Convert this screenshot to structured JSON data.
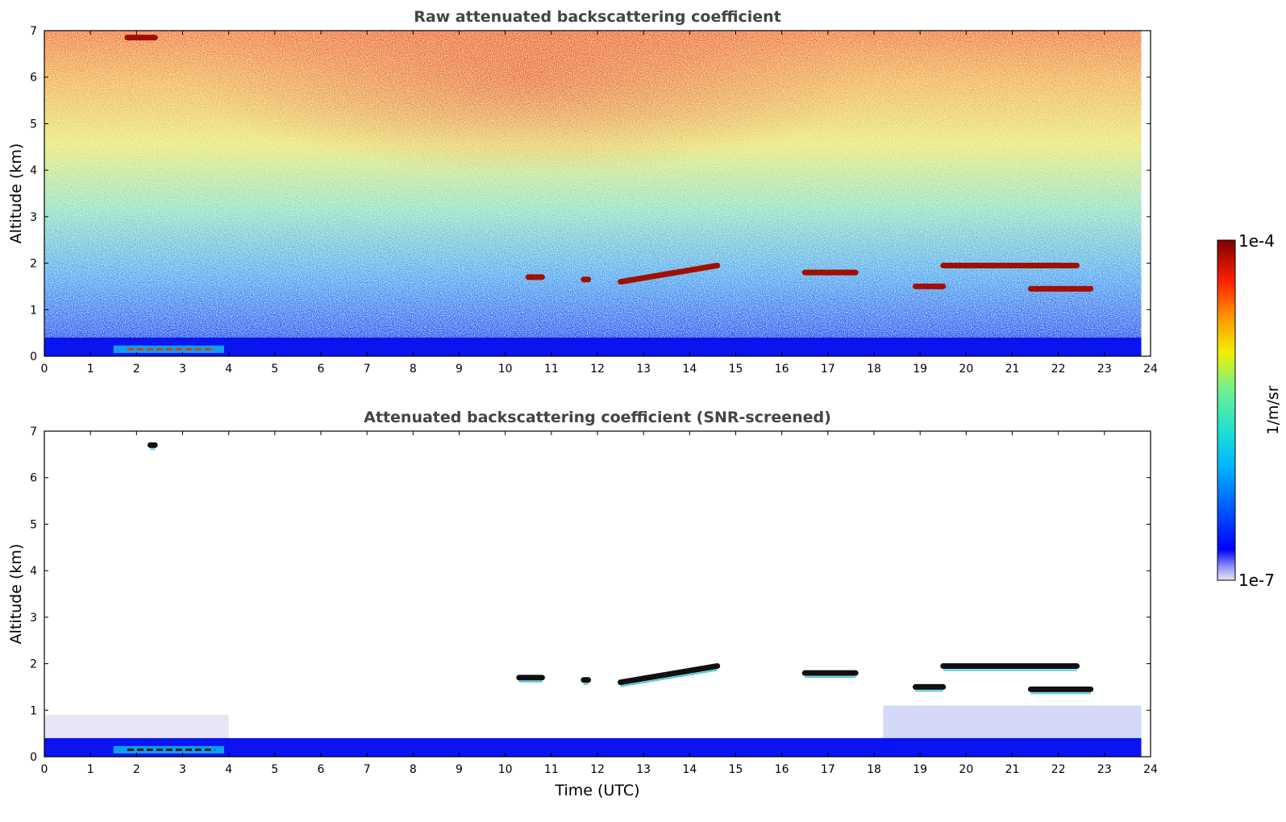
{
  "chart_data": [
    {
      "type": "heatmap",
      "title": "Raw attenuated backscattering coefficient",
      "xlabel": "",
      "ylabel": "Altitude (km)",
      "xlim": [
        0,
        24
      ],
      "ylim": [
        0,
        7
      ],
      "x_ticks": [
        "0",
        "1",
        "2",
        "3",
        "4",
        "5",
        "6",
        "7",
        "8",
        "9",
        "10",
        "11",
        "12",
        "13",
        "14",
        "15",
        "16",
        "17",
        "18",
        "19",
        "20",
        "21",
        "22",
        "23",
        "24"
      ],
      "y_ticks": [
        "0",
        "1",
        "2",
        "3",
        "4",
        "5",
        "6",
        "7"
      ],
      "data_x_extent": [
        0,
        23.8
      ],
      "features": [
        {
          "kind": "surface-layer",
          "x": [
            0,
            23.8
          ],
          "y_top": 0.4
        },
        {
          "kind": "dense-layer",
          "x": [
            1.5,
            3.9
          ],
          "y": 0.15
        },
        {
          "kind": "cloud",
          "x": [
            10.5,
            10.8
          ],
          "y": 1.7
        },
        {
          "kind": "cloud",
          "x": [
            11.7,
            11.8
          ],
          "y": 1.65
        },
        {
          "kind": "cloud",
          "x": [
            12.5,
            14.6
          ],
          "y": [
            1.6,
            1.95
          ]
        },
        {
          "kind": "cloud",
          "x": [
            16.5,
            17.6
          ],
          "y": 1.8
        },
        {
          "kind": "cloud",
          "x": [
            18.9,
            19.5
          ],
          "y": 1.5
        },
        {
          "kind": "cloud",
          "x": [
            19.5,
            22.4
          ],
          "y": 1.95
        },
        {
          "kind": "cloud",
          "x": [
            21.4,
            22.7
          ],
          "y": 1.45
        },
        {
          "kind": "cloud",
          "x": [
            1.8,
            2.4
          ],
          "y": 6.85
        }
      ]
    },
    {
      "type": "heatmap",
      "title": "Attenuated backscattering coefficient (SNR-screened)",
      "xlabel": "Time (UTC)",
      "ylabel": "Altitude (km)",
      "xlim": [
        0,
        24
      ],
      "ylim": [
        0,
        7
      ],
      "x_ticks": [
        "0",
        "1",
        "2",
        "3",
        "4",
        "5",
        "6",
        "7",
        "8",
        "9",
        "10",
        "11",
        "12",
        "13",
        "14",
        "15",
        "16",
        "17",
        "18",
        "19",
        "20",
        "21",
        "22",
        "23",
        "24"
      ],
      "y_ticks": [
        "0",
        "1",
        "2",
        "3",
        "4",
        "5",
        "6",
        "7"
      ],
      "data_x_extent": [
        0,
        23.8
      ],
      "features": [
        {
          "kind": "surface-layer",
          "x": [
            0,
            23.8
          ],
          "y_top": 0.4
        },
        {
          "kind": "dense-layer",
          "x": [
            1.5,
            3.9
          ],
          "y": 0.15
        },
        {
          "kind": "cloud",
          "x": [
            10.3,
            10.8
          ],
          "y": 1.7
        },
        {
          "kind": "cloud",
          "x": [
            11.7,
            11.8
          ],
          "y": 1.65
        },
        {
          "kind": "cloud",
          "x": [
            12.5,
            14.6
          ],
          "y": [
            1.6,
            1.95
          ]
        },
        {
          "kind": "cloud",
          "x": [
            16.5,
            17.6
          ],
          "y": 1.8
        },
        {
          "kind": "cloud",
          "x": [
            18.9,
            19.5
          ],
          "y": 1.5
        },
        {
          "kind": "cloud",
          "x": [
            19.5,
            22.4
          ],
          "y": 1.95
        },
        {
          "kind": "cloud",
          "x": [
            21.4,
            22.7
          ],
          "y": 1.45
        },
        {
          "kind": "cloud",
          "x": [
            2.3,
            2.4
          ],
          "y": 6.7
        }
      ]
    }
  ],
  "colorbar": {
    "label": "1/m/sr",
    "max_label": "1e-4",
    "min_label": "1e-7",
    "scale": "log",
    "colormap": "jet",
    "colors": [
      "#e6e6f5",
      "#0000ff",
      "#00a0ff",
      "#20d8e0",
      "#60f0a0",
      "#f0f000",
      "#ff8000",
      "#ff2000",
      "#7f0000"
    ]
  }
}
